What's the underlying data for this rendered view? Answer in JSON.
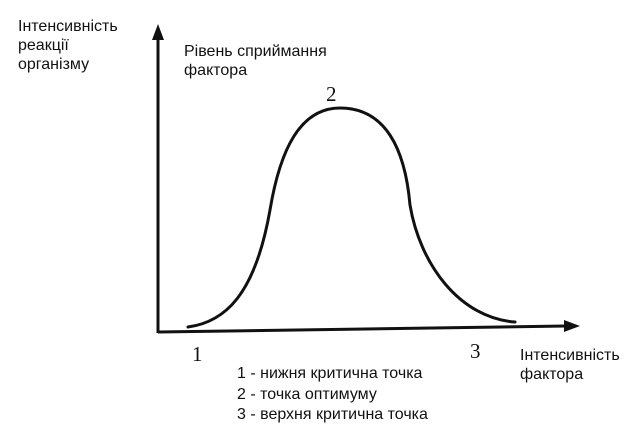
{
  "y_axis_label": [
    "Інтенсивність",
    "реакції",
    "організму"
  ],
  "curve_label": [
    "Рівень сприймання",
    "фактора"
  ],
  "x_axis_label": [
    "Інтенсивність",
    "фактора"
  ],
  "point_markers": {
    "lower_critical": "1",
    "optimum": "2",
    "upper_critical": "3"
  },
  "legend": [
    "1 - нижня критична точка",
    "2 - точка оптимуму",
    "3 - верхня критична точка"
  ]
}
